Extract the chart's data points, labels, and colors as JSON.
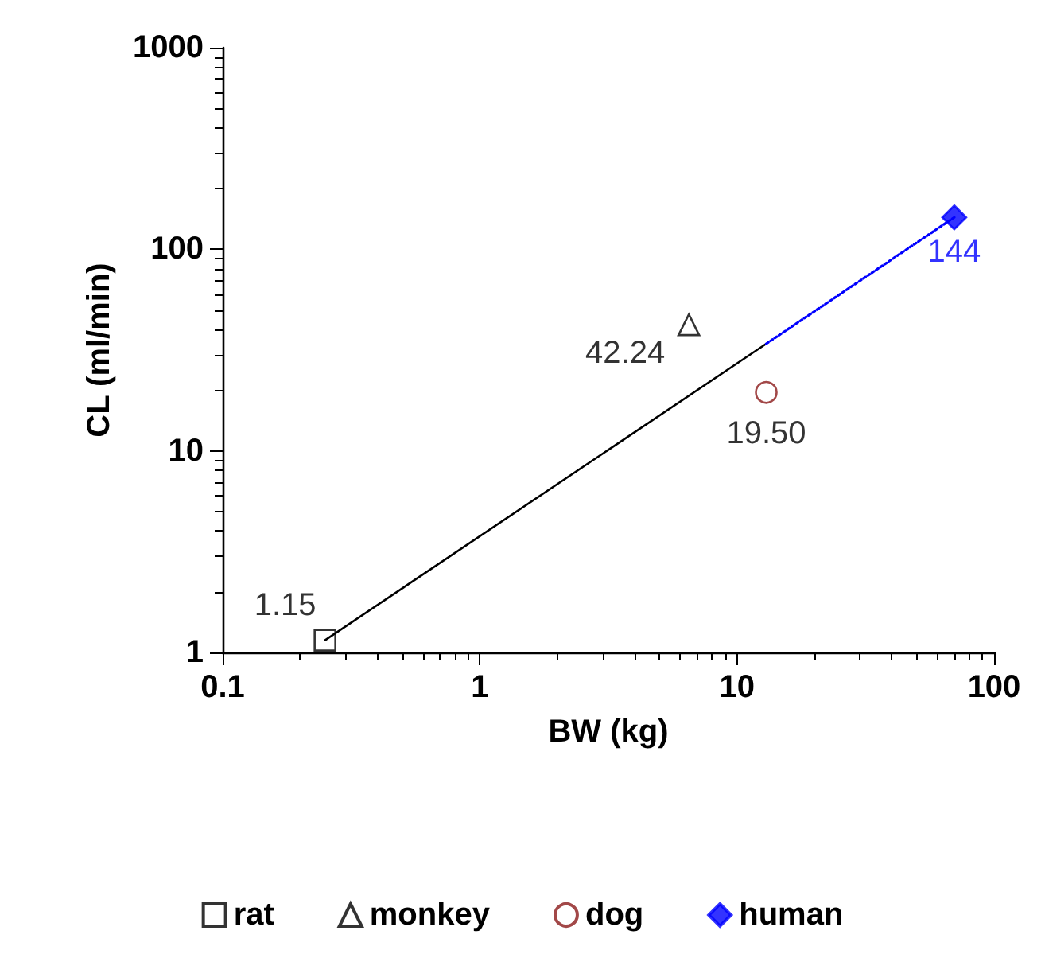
{
  "chart_data": {
    "type": "scatter",
    "xlabel": "BW (kg)",
    "ylabel": "CL (ml/min)",
    "log": "xy",
    "xlim": [
      0.1,
      100
    ],
    "xticks": [
      0.1,
      1,
      10,
      100
    ],
    "ylim": [
      1,
      1000
    ],
    "yticks": [
      1,
      10,
      100,
      1000
    ],
    "grid": false,
    "legend": "bottom",
    "series": [
      {
        "name": "rat",
        "color": "#000000",
        "marker": "square",
        "x": [
          0.25
        ],
        "values": [
          1.15
        ],
        "value_labels": [
          "1.15"
        ]
      },
      {
        "name": "monkey",
        "color": "#000000",
        "marker": "triangle",
        "x": [
          6.5
        ],
        "values": [
          42.24
        ],
        "value_labels": [
          "42.24"
        ]
      },
      {
        "name": "dog",
        "color": "#8b1a1a",
        "marker": "circle",
        "x": [
          13
        ],
        "values": [
          19.5
        ],
        "value_labels": [
          "19.50"
        ]
      },
      {
        "name": "human",
        "color": "#0000ff",
        "marker": "diamond",
        "x": [
          70
        ],
        "values": [
          144
        ],
        "value_labels": [
          "144"
        ]
      },
      {
        "type": "line",
        "color": "#000000",
        "line_style": "solid",
        "marker": "none",
        "x": [
          0.25,
          13
        ],
        "values": [
          1.15,
          34
        ]
      },
      {
        "type": "line",
        "color": "#0000ff",
        "line_style": "dotted",
        "marker": "none",
        "x": [
          13,
          70
        ],
        "values": [
          34,
          144
        ]
      }
    ]
  }
}
